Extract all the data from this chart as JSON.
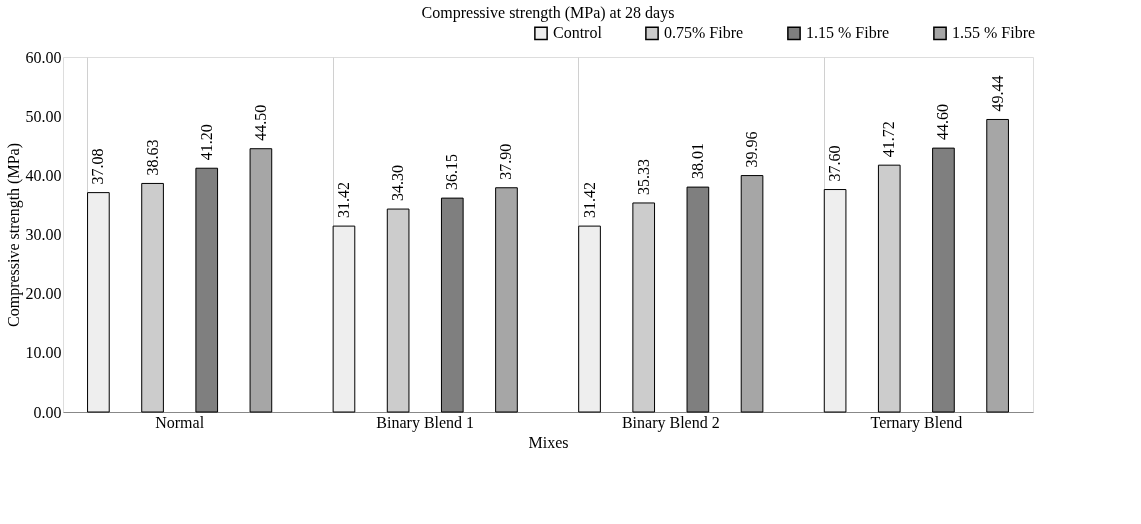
{
  "chart_data": {
    "type": "bar",
    "title": "Compressive strength (MPa) at 28 days",
    "xlabel": "Mixes",
    "ylabel": "Compressive strength (MPa)",
    "categories": [
      "Normal",
      "Binary Blend 1",
      "Binary Blend 2",
      "Ternary Blend"
    ],
    "series": [
      {
        "name": "Control",
        "color": "#eeeeee",
        "values": [
          37.08,
          31.42,
          31.42,
          37.6
        ],
        "value_labels": [
          "37.08",
          "31.42",
          "31.42",
          "37.60"
        ]
      },
      {
        "name": "0.75% Fibre",
        "color": "#cccccc",
        "values": [
          38.63,
          34.3,
          35.33,
          41.72
        ],
        "value_labels": [
          "38.63",
          "34.30",
          "35.33",
          "41.72"
        ]
      },
      {
        "name": "1.15 % Fibre",
        "color": "#7f7f7f",
        "values": [
          41.2,
          36.15,
          38.01,
          44.6
        ],
        "value_labels": [
          "41.20",
          "36.15",
          "38.01",
          "44.60"
        ]
      },
      {
        "name": "1.55 % Fibre",
        "color": "#a6a6a6",
        "values": [
          44.5,
          37.9,
          39.96,
          49.44
        ],
        "value_labels": [
          "44.50",
          "37.90",
          "39.96",
          "49.44"
        ]
      }
    ],
    "ylim": [
      0,
      60
    ],
    "yticks": [
      {
        "value": 0,
        "label": "0.00"
      },
      {
        "value": 10,
        "label": "10.00"
      },
      {
        "value": 20,
        "label": "20.00"
      },
      {
        "value": 30,
        "label": "30.00"
      },
      {
        "value": 40,
        "label": "40.00"
      },
      {
        "value": 50,
        "label": "50.00"
      },
      {
        "value": 60,
        "label": "60.00"
      }
    ],
    "grid": "x",
    "legend": "top right"
  }
}
